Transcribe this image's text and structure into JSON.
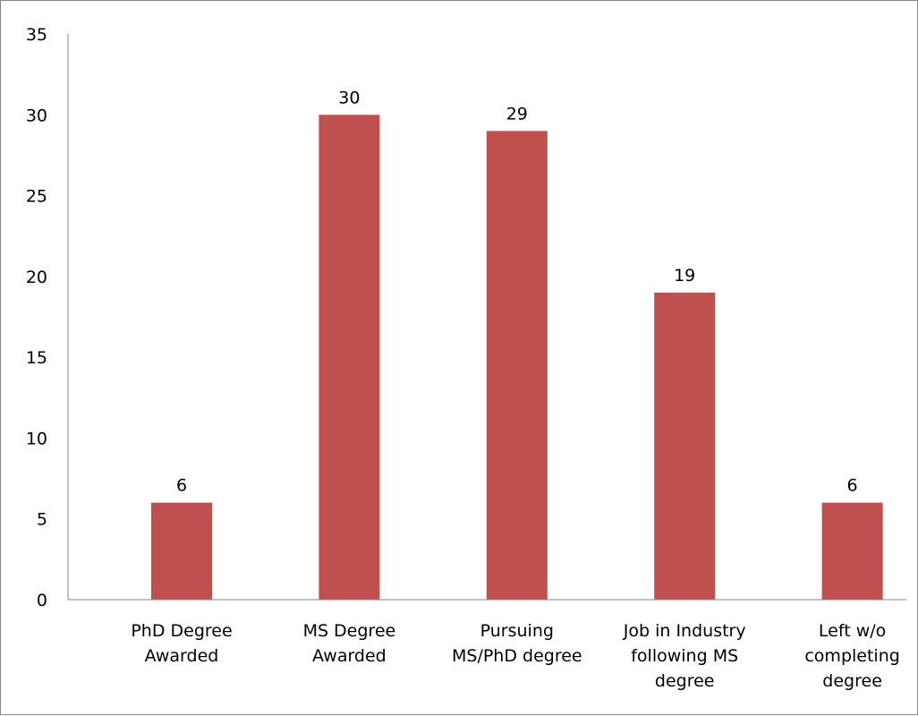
{
  "chart_data": {
    "type": "bar",
    "categories": [
      [
        "PhD Degree",
        "Awarded"
      ],
      [
        "MS Degree",
        "Awarded"
      ],
      [
        "Pursuing",
        "MS/PhD degree"
      ],
      [
        "Job in Industry",
        "following MS",
        "degree"
      ],
      [
        "Left w/o",
        "completing",
        "degree"
      ]
    ],
    "values": [
      6,
      30,
      29,
      19,
      6
    ],
    "data_labels": [
      "6",
      "30",
      "29",
      "19",
      "6"
    ],
    "ylim": [
      0,
      35
    ],
    "yticks": [
      0,
      5,
      10,
      15,
      20,
      25,
      30,
      35
    ],
    "grid": false,
    "legend": "none",
    "bar_color": "#c0504d",
    "axis_color": "#868686"
  }
}
